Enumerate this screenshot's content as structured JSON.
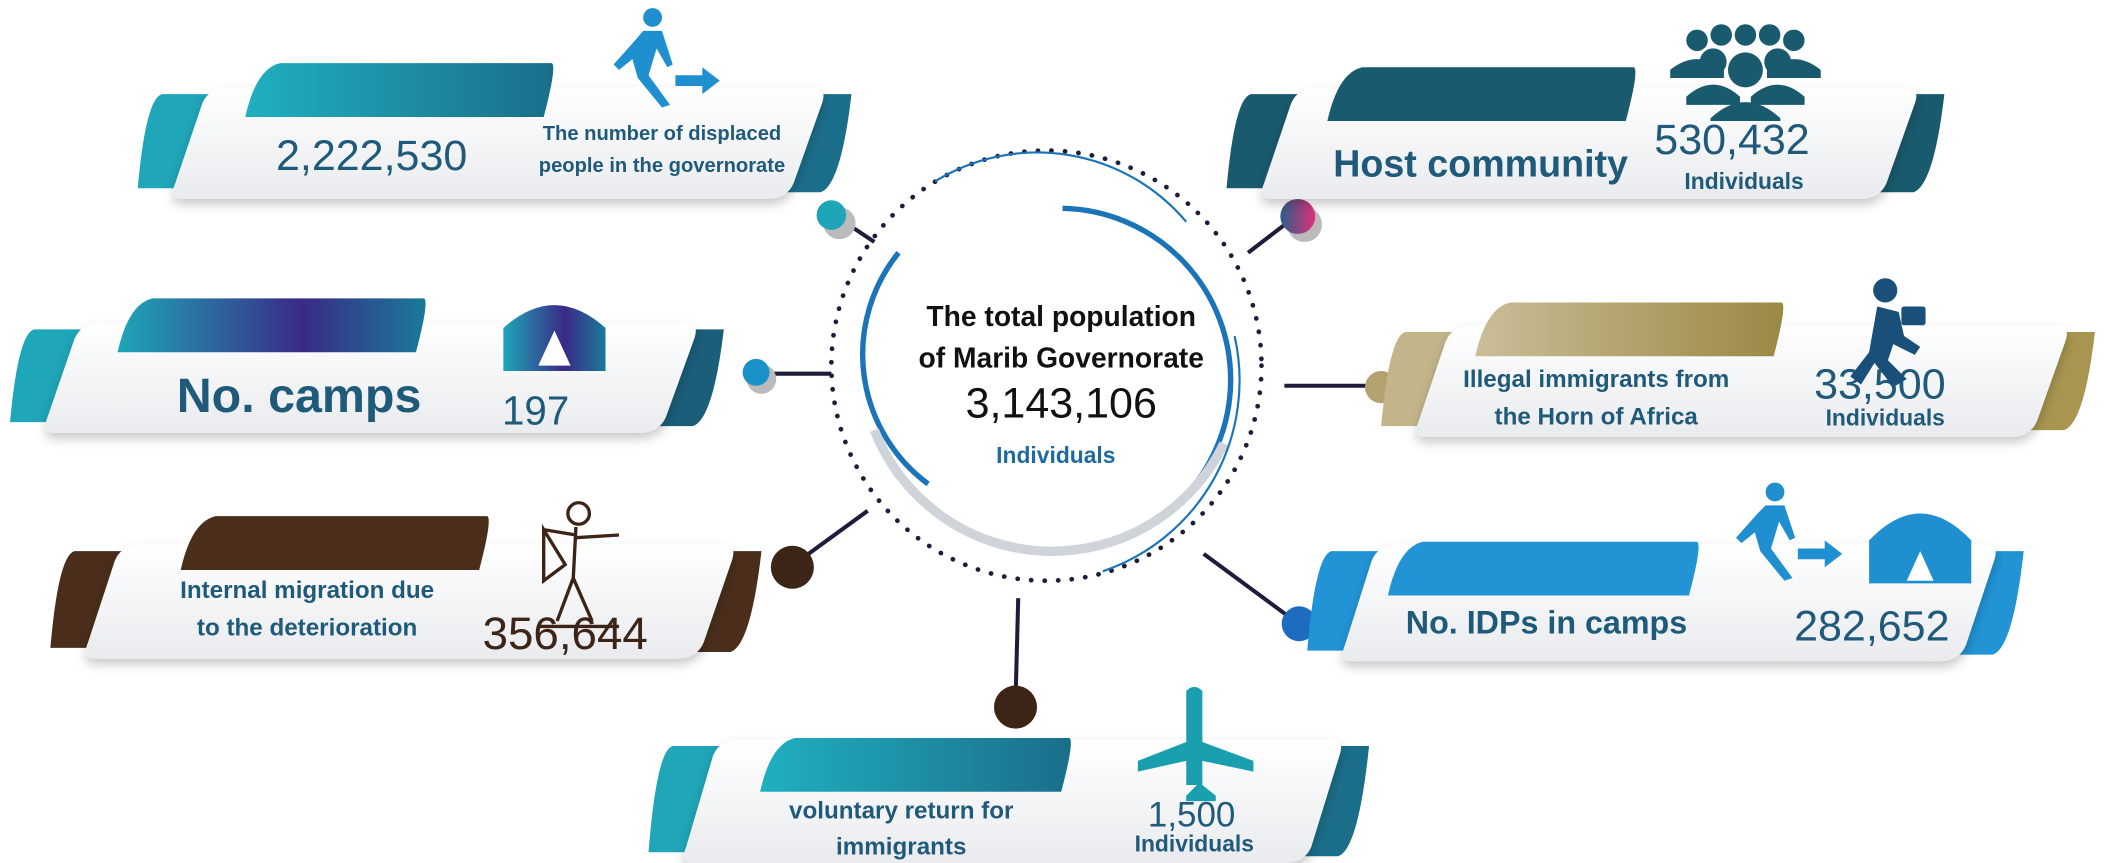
{
  "center": {
    "title_lines": [
      "The total population",
      "of Marib Governorate"
    ],
    "value": "3,143,106",
    "unit": "Individuals"
  },
  "cards": [
    {
      "label_lines": [
        "The number of displaced",
        "people in the governorate"
      ],
      "value": "2,222,530"
    },
    {
      "label_lines": [
        "No. camps"
      ],
      "value": "197"
    },
    {
      "label_lines": [
        "Internal migration due",
        "to the deterioration"
      ],
      "value": "356,644"
    },
    {
      "label_lines": [
        "voluntary return for",
        "immigrants"
      ],
      "value": "1,500",
      "unit": "Individuals"
    },
    {
      "label_lines": [
        "Host community"
      ],
      "value": "530,432",
      "unit": "Individuals"
    },
    {
      "label_lines": [
        "Illegal immigrants from",
        "the Horn of Africa"
      ],
      "value": "33,500",
      "unit": "Individuals"
    },
    {
      "label_lines": [
        "No. IDPs in camps"
      ],
      "value": "282,652"
    }
  ]
}
